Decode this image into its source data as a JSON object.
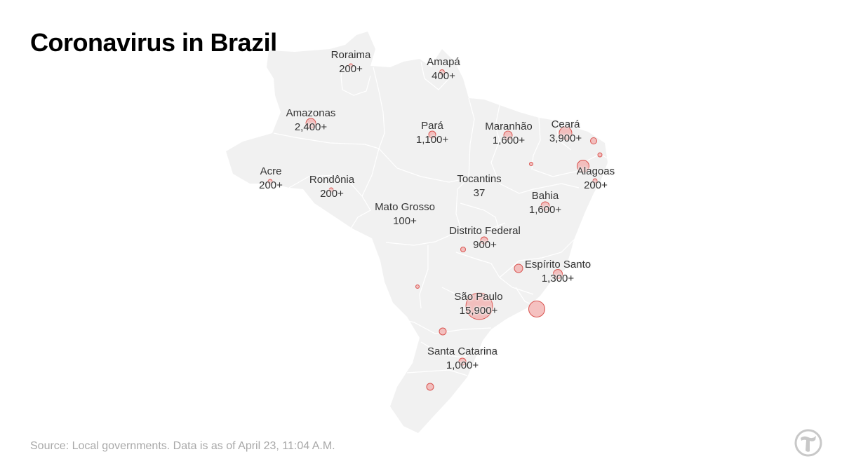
{
  "title": "Coronavirus in Brazil",
  "source": "Source: Local governments. Data is as of April 23, 11:04 A.M.",
  "colors": {
    "land": "#f1f1f1",
    "border": "#ffffff",
    "bubble_fill": "#f3b2b0",
    "bubble_stroke": "#d9534f",
    "label": "#333333",
    "source": "#a8a8a8",
    "logo": "#c8c8c8"
  },
  "logo_icon": "nyt-t-logo-icon",
  "states": [
    {
      "name": "Roraima",
      "value": "200+"
    },
    {
      "name": "Amapá",
      "value": "400+"
    },
    {
      "name": "Amazonas",
      "value": "2,400+"
    },
    {
      "name": "Pará",
      "value": "1,100+"
    },
    {
      "name": "Maranhão",
      "value": "1,600+"
    },
    {
      "name": "Ceará",
      "value": "3,900+"
    },
    {
      "name": "Acre",
      "value": "200+"
    },
    {
      "name": "Rondônia",
      "value": "200+"
    },
    {
      "name": "Tocantins",
      "value": "37"
    },
    {
      "name": "Alagoas",
      "value": "200+"
    },
    {
      "name": "Mato Grosso",
      "value": "100+"
    },
    {
      "name": "Bahia",
      "value": "1,600+"
    },
    {
      "name": "Distrito Federal",
      "value": "900+"
    },
    {
      "name": "Espírito Santo",
      "value": "1,300+"
    },
    {
      "name": "São Paulo",
      "value": "15,900+"
    },
    {
      "name": "Santa Catarina",
      "value": "1,000+"
    }
  ]
}
